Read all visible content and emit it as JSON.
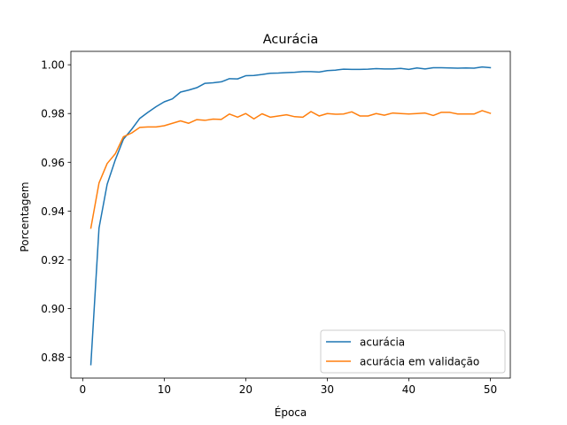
{
  "chart_data": {
    "type": "line",
    "title": "Acurácia",
    "xlabel": "Época",
    "ylabel": "Porcentagem",
    "xlim": [
      -1.45,
      52.45
    ],
    "ylim": [
      0.8715,
      1.0055
    ],
    "xticks": [
      0,
      10,
      20,
      30,
      40,
      50
    ],
    "xtick_labels": [
      "0",
      "10",
      "20",
      "30",
      "40",
      "50"
    ],
    "yticks": [
      0.88,
      0.9,
      0.92,
      0.94,
      0.96,
      0.98,
      1.0
    ],
    "ytick_labels": [
      "0.88",
      "0.90",
      "0.92",
      "0.94",
      "0.96",
      "0.98",
      "1.00"
    ],
    "grid": false,
    "legend_position": "bottom-right",
    "x": [
      1,
      2,
      3,
      4,
      5,
      6,
      7,
      8,
      9,
      10,
      11,
      12,
      13,
      14,
      15,
      16,
      17,
      18,
      19,
      20,
      21,
      22,
      23,
      24,
      25,
      26,
      27,
      28,
      29,
      30,
      31,
      32,
      33,
      34,
      35,
      36,
      37,
      38,
      39,
      40,
      41,
      42,
      43,
      44,
      45,
      46,
      47,
      48,
      49,
      50
    ],
    "series": [
      {
        "name": "acurácia",
        "color": "#1f77b4",
        "values": [
          0.877,
          0.933,
          0.951,
          0.961,
          0.9695,
          0.9735,
          0.978,
          0.9805,
          0.9828,
          0.9848,
          0.986,
          0.9888,
          0.9896,
          0.9906,
          0.9924,
          0.9926,
          0.993,
          0.9943,
          0.9942,
          0.9955,
          0.9956,
          0.996,
          0.9965,
          0.9966,
          0.9968,
          0.9969,
          0.9972,
          0.9972,
          0.997,
          0.9976,
          0.9978,
          0.9982,
          0.9981,
          0.9981,
          0.9982,
          0.9984,
          0.9983,
          0.9983,
          0.9985,
          0.9981,
          0.9987,
          0.9983,
          0.9988,
          0.9988,
          0.9987,
          0.9986,
          0.9987,
          0.9986,
          0.9991,
          0.9988
        ]
      },
      {
        "name": "acurácia em validação",
        "color": "#ff7f0e",
        "values": [
          0.933,
          0.9515,
          0.9595,
          0.9635,
          0.9705,
          0.972,
          0.9743,
          0.9745,
          0.9745,
          0.975,
          0.976,
          0.977,
          0.976,
          0.9775,
          0.9772,
          0.9777,
          0.9776,
          0.9798,
          0.9785,
          0.98,
          0.9778,
          0.9799,
          0.9785,
          0.979,
          0.9795,
          0.9787,
          0.9785,
          0.9808,
          0.979,
          0.98,
          0.9797,
          0.9798,
          0.9807,
          0.979,
          0.979,
          0.98,
          0.9793,
          0.9802,
          0.98,
          0.9798,
          0.98,
          0.9802,
          0.9792,
          0.9805,
          0.9805,
          0.9798,
          0.9798,
          0.9798,
          0.9812,
          0.9801
        ]
      }
    ]
  }
}
